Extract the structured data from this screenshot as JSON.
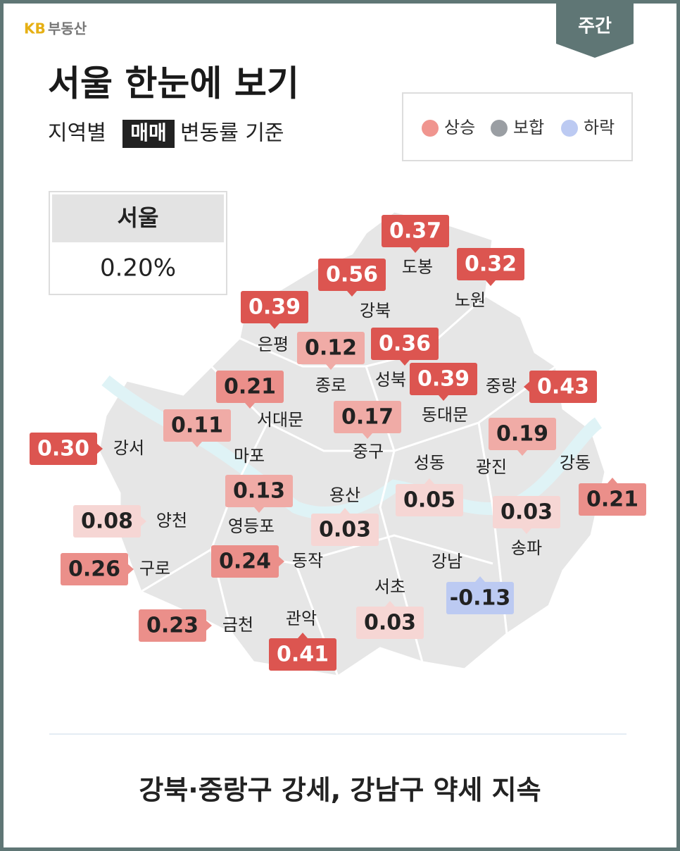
{
  "brand": {
    "kb": "KB",
    "name": "부동산"
  },
  "tab": "주간",
  "header": {
    "title": "서울 한눈에 보기",
    "subtitle": {
      "before": "지역별",
      "highlight": "매매",
      "after": "변동률 기준"
    }
  },
  "legend": [
    {
      "label": "상승",
      "color": "#f0958f"
    },
    {
      "label": "보합",
      "color": "#9a9ea3"
    },
    {
      "label": "하락",
      "color": "#bccaf2"
    }
  ],
  "summary": {
    "region": "서울",
    "value": "0.20%"
  },
  "districts": [
    {
      "name": "도봉",
      "value": "0.37",
      "color": "#dc5550",
      "text_color": "#ffffff"
    },
    {
      "name": "노원",
      "value": "0.32",
      "color": "#dc5550",
      "text_color": "#ffffff"
    },
    {
      "name": "강북",
      "value": "0.56",
      "color": "#dc5550",
      "text_color": "#ffffff"
    },
    {
      "name": "은평",
      "value": "0.39",
      "color": "#dc5550",
      "text_color": "#ffffff"
    },
    {
      "name": "종로",
      "value": "0.12",
      "color": "#f0aba6",
      "text_color": "#222222"
    },
    {
      "name": "성북",
      "value": "0.36",
      "color": "#dc5550",
      "text_color": "#ffffff"
    },
    {
      "name": "동대문",
      "value": "0.39",
      "color": "#dc5550",
      "text_color": "#ffffff"
    },
    {
      "name": "중랑",
      "value": "0.43",
      "color": "#dc5550",
      "text_color": "#ffffff"
    },
    {
      "name": "서대문",
      "value": "0.21",
      "color": "#eb8f8a",
      "text_color": "#222222"
    },
    {
      "name": "중구",
      "value": "0.17",
      "color": "#f0aba6",
      "text_color": "#222222"
    },
    {
      "name": "마포",
      "value": "0.11",
      "color": "#f0aba6",
      "text_color": "#222222"
    },
    {
      "name": "강서",
      "value": "0.30",
      "color": "#dc5550",
      "text_color": "#ffffff"
    },
    {
      "name": "광진",
      "value": "0.19",
      "color": "#f0aba6",
      "text_color": "#222222"
    },
    {
      "name": "강동",
      "value": "0.21",
      "color": "#eb8f8a",
      "text_color": "#222222"
    },
    {
      "name": "성동",
      "value": "0.05",
      "color": "#f6d6d4",
      "text_color": "#222222"
    },
    {
      "name": "용산",
      "value": "0.03",
      "color": "#f6d6d4",
      "text_color": "#222222"
    },
    {
      "name": "송파",
      "value": "0.03",
      "color": "#f6d6d4",
      "text_color": "#222222"
    },
    {
      "name": "영등포",
      "value": "0.13",
      "color": "#f0aba6",
      "text_color": "#222222"
    },
    {
      "name": "양천",
      "value": "0.08",
      "color": "#f6d6d4",
      "text_color": "#222222"
    },
    {
      "name": "구로",
      "value": "0.26",
      "color": "#eb8f8a",
      "text_color": "#222222"
    },
    {
      "name": "동작",
      "value": "0.24",
      "color": "#eb8f8a",
      "text_color": "#222222"
    },
    {
      "name": "강남",
      "value": "-0.13",
      "color": "#bccaf2",
      "text_color": "#222222"
    },
    {
      "name": "서초",
      "value": "0.03",
      "color": "#f6d6d4",
      "text_color": "#222222"
    },
    {
      "name": "관악",
      "value": "0.41",
      "color": "#dc5550",
      "text_color": "#ffffff"
    },
    {
      "name": "금천",
      "value": "0.23",
      "color": "#eb8f8a",
      "text_color": "#222222"
    }
  ],
  "footer": "강북·중랑구 강세, 강남구 약세 지속"
}
